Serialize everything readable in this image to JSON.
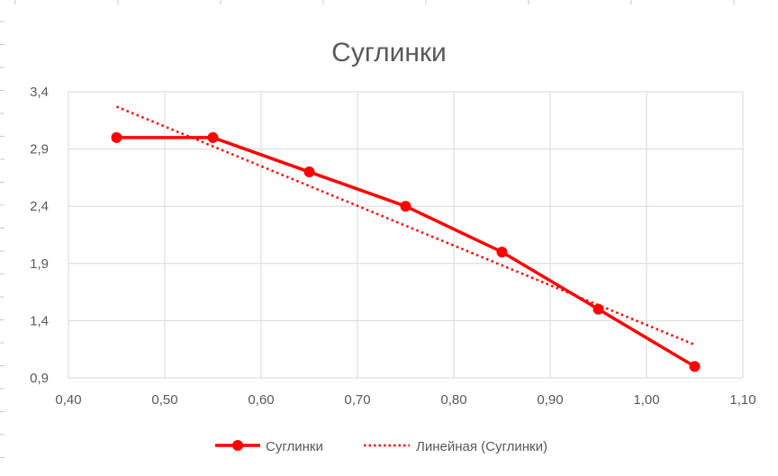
{
  "chart_data": {
    "type": "line",
    "title": "Суглинки",
    "xlabel": "",
    "ylabel": "",
    "xlim": [
      0.4,
      1.1
    ],
    "ylim": [
      0.9,
      3.4
    ],
    "x_ticks": [
      "0,40",
      "0,50",
      "0,60",
      "0,70",
      "0,80",
      "0,90",
      "1,00",
      "1,10"
    ],
    "y_ticks": [
      "0,9",
      "1,4",
      "1,9",
      "2,4",
      "2,9",
      "3,4"
    ],
    "x_tick_values": [
      0.4,
      0.5,
      0.6,
      0.7,
      0.8,
      0.9,
      1.0,
      1.1
    ],
    "y_tick_values": [
      0.9,
      1.4,
      1.9,
      2.4,
      2.9,
      3.4
    ],
    "grid": true,
    "legend_position": "bottom",
    "series": [
      {
        "name": "Суглинки",
        "color": "#ff0000",
        "x": [
          0.45,
          0.55,
          0.65,
          0.75,
          0.85,
          0.95,
          1.05
        ],
        "y": [
          3.0,
          3.0,
          2.7,
          2.4,
          2.0,
          1.5,
          1.0
        ]
      }
    ],
    "trendline": {
      "name": "Линейная (Суглинки)",
      "color": "#ff0000",
      "style": "dotted",
      "x": [
        0.45,
        1.05
      ],
      "y": [
        3.27,
        1.19
      ]
    }
  }
}
